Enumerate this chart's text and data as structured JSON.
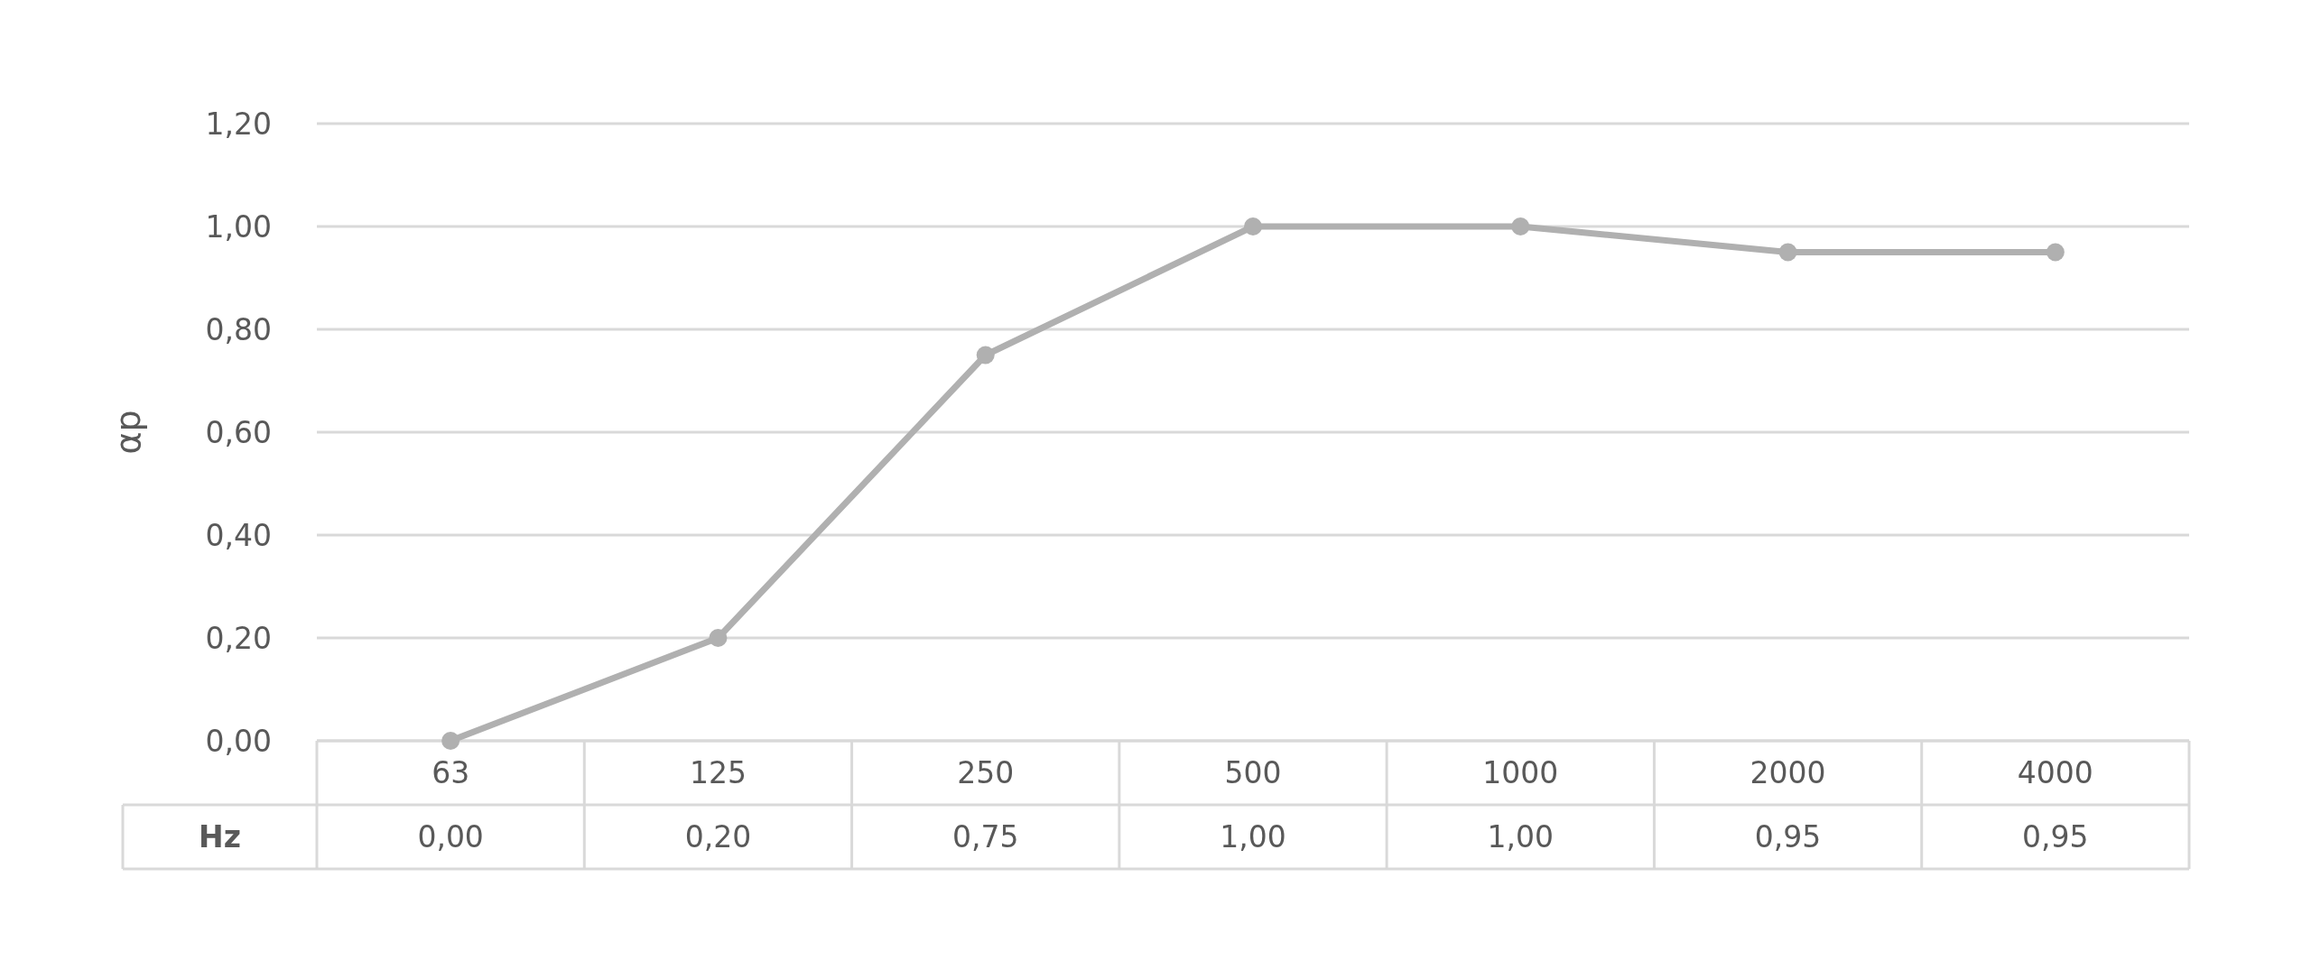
{
  "chart_data": {
    "type": "line",
    "ylabel": "αp",
    "categories": [
      "63",
      "125",
      "250",
      "500",
      "1000",
      "2000",
      "4000"
    ],
    "series": [
      {
        "name": "Hz",
        "color": "#b0b0b0",
        "values": [
          0,
          0.2,
          0.75,
          1,
          1,
          0.95,
          0.95
        ],
        "value_labels": [
          "0,00",
          "0,20",
          "0,75",
          "1,00",
          "1,00",
          "0,95",
          "0,95"
        ]
      }
    ],
    "ylim": [
      0,
      1.2
    ],
    "yticks": [
      {
        "value": 0,
        "label": "0,00"
      },
      {
        "value": 0.2,
        "label": "0,20"
      },
      {
        "value": 0.4,
        "label": "0,40"
      },
      {
        "value": 0.6,
        "label": "0,60"
      },
      {
        "value": 0.8,
        "label": "0,80"
      },
      {
        "value": 1,
        "label": "1,00"
      },
      {
        "value": 1.2,
        "label": "1,20"
      }
    ],
    "grid": "y",
    "marker": "circle",
    "line_style": "solid"
  }
}
